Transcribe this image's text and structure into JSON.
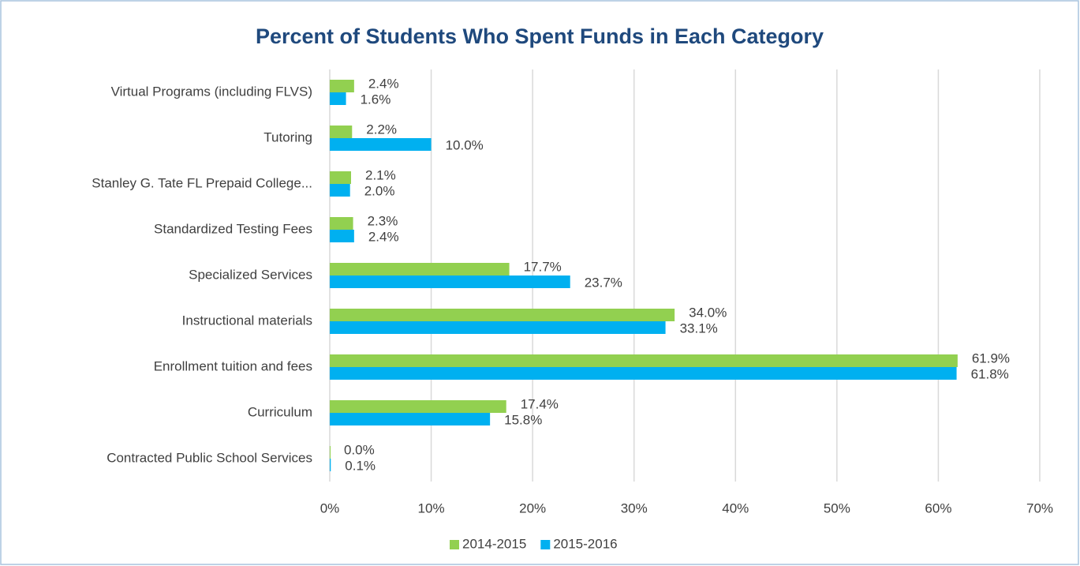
{
  "chart_data": {
    "type": "hbar",
    "title": "Percent of Students Who Spent Funds in Each Category",
    "categories": [
      "Virtual Programs (including FLVS)",
      "Tutoring",
      "Stanley G. Tate FL Prepaid College...",
      "Standardized Testing Fees",
      "Specialized Services",
      "Instructional materials",
      "Enrollment tuition and fees",
      "Curriculum",
      "Contracted Public School Services"
    ],
    "series": [
      {
        "name": "2014-2015",
        "color": "#92d050",
        "values": [
          2.4,
          2.2,
          2.1,
          2.3,
          17.7,
          34.0,
          61.9,
          17.4,
          0.0
        ],
        "value_labels": [
          "2.4%",
          "2.2%",
          "2.1%",
          "2.3%",
          "17.7%",
          "34.0%",
          "61.9%",
          "17.4%",
          "0.0%"
        ]
      },
      {
        "name": "2015-2016",
        "color": "#00b0f0",
        "values": [
          1.6,
          10.0,
          2.0,
          2.4,
          23.7,
          33.1,
          61.8,
          15.8,
          0.1
        ],
        "value_labels": [
          "1.6%",
          "10.0%",
          "2.0%",
          "2.4%",
          "23.7%",
          "33.1%",
          "61.8%",
          "15.8%",
          "0.1%"
        ]
      }
    ],
    "xlim": [
      0,
      70
    ],
    "xticks": [
      {
        "value": 0,
        "label": "0%"
      },
      {
        "value": 10,
        "label": "10%"
      },
      {
        "value": 20,
        "label": "20%"
      },
      {
        "value": 30,
        "label": "30%"
      },
      {
        "value": 40,
        "label": "40%"
      },
      {
        "value": 50,
        "label": "50%"
      },
      {
        "value": 60,
        "label": "60%"
      },
      {
        "value": 70,
        "label": "70%"
      }
    ],
    "grid": true,
    "legend": "bottom"
  }
}
